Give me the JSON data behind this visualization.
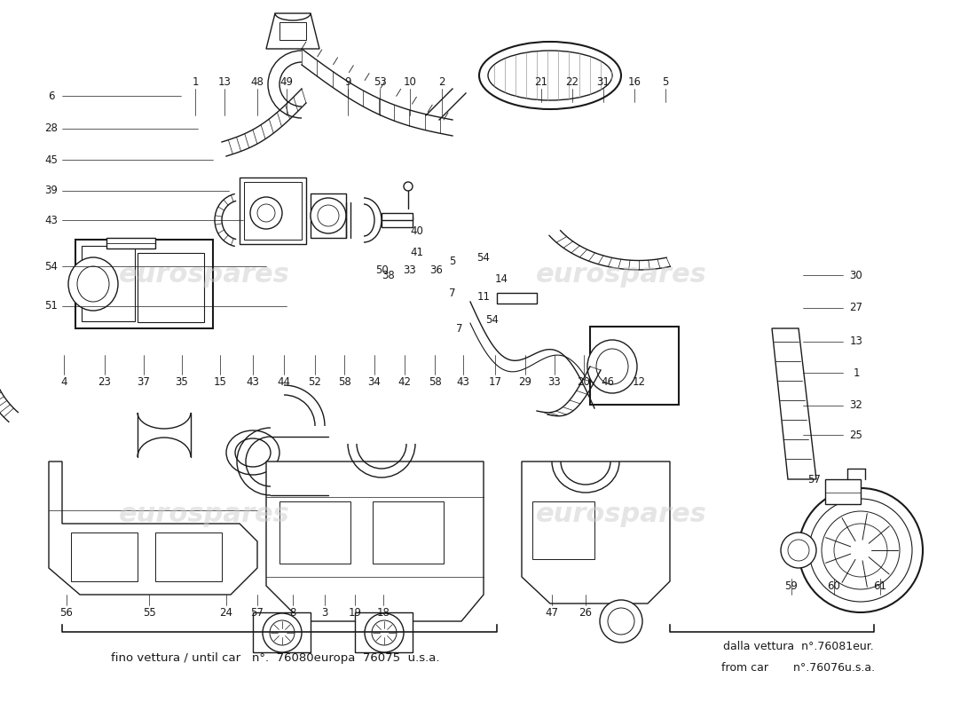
{
  "bg_color": "#ffffff",
  "line_color": "#1a1a1a",
  "watermark_color": "#cccccc",
  "watermark_text": "eurospares",
  "bottom_left": "fino vettura / until car   n°.  76080europa  76075  u.s.a.",
  "bottom_right1": "dalla vettura  n°.76081eur.",
  "bottom_right2": "from car       n°.76076u.s.a.",
  "fig_w": 11.0,
  "fig_h": 8.0,
  "dpi": 100
}
